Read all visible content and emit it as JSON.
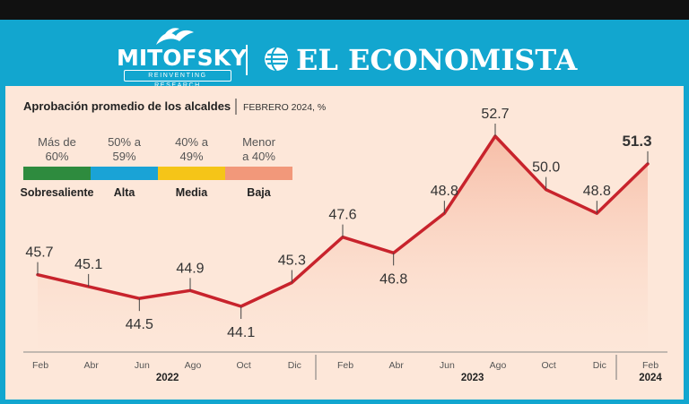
{
  "brand": {
    "left_name": "MITOFSKY",
    "left_tagline": "REINVENTING RESEARCH",
    "right_name": "EL ECONOMISTA"
  },
  "colors": {
    "header_bg": "#12a6cf",
    "panel_bg": "#fde7d9",
    "line": "#c8232c",
    "area": "#f8c9b6"
  },
  "chart_data": {
    "type": "line",
    "title": "Aprobación promedio de los alcaldes",
    "subtitle": "FEBRERO 2024, %",
    "x": [
      "Feb",
      "Abr",
      "Jun",
      "Ago",
      "Oct",
      "Dic",
      "Feb",
      "Abr",
      "Jun",
      "Ago",
      "Oct",
      "Dic",
      "Feb"
    ],
    "years": [
      {
        "label": "2022",
        "from": 0,
        "to": 5
      },
      {
        "label": "2023",
        "from": 6,
        "to": 11
      },
      {
        "label": "2024",
        "from": 12,
        "to": 12
      }
    ],
    "series": [
      {
        "values": [
          45.7,
          45.1,
          44.5,
          44.9,
          44.1,
          45.3,
          47.6,
          46.8,
          48.8,
          52.7,
          50.0,
          48.8,
          51.3
        ]
      }
    ],
    "value_labels": [
      "45.7",
      "45.1",
      "44.5",
      "44.9",
      "44.1",
      "45.3",
      "47.6",
      "46.8",
      "48.8",
      "52.7",
      "50.0",
      "48.8",
      "51.3"
    ],
    "legend": [
      {
        "range": "Más de 60%",
        "range_lines": [
          "Más de",
          "60%"
        ],
        "name": "Sobresaliente",
        "color": "#2e8b3e"
      },
      {
        "range": "50% a 59%",
        "range_lines": [
          "50% a",
          "59%"
        ],
        "name": "Alta",
        "color": "#1aa3d6"
      },
      {
        "range": "40% a 49%",
        "range_lines": [
          "40% a",
          "49%"
        ],
        "name": "Media",
        "color": "#f5c518"
      },
      {
        "range": "Menor a 40%",
        "range_lines": [
          "Menor",
          "a 40%"
        ],
        "name": "Baja",
        "color": "#f2987a"
      }
    ],
    "legend_position": "top-left",
    "grid": false
  }
}
